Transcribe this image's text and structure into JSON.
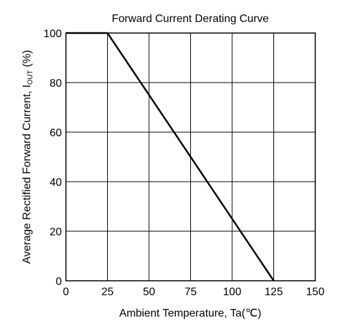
{
  "chart_data": {
    "type": "line",
    "title": "Forward Current Derating Curve",
    "xlabel": "Ambient Temperature, Ta(℃)",
    "ylabel": {
      "prefix": "Average Rectified Forward Current,  I",
      "subscript": "OUT",
      "suffix": "  (%)"
    },
    "xlim": [
      0,
      150
    ],
    "ylim": [
      0,
      100
    ],
    "xticks": [
      0,
      25,
      50,
      75,
      100,
      125,
      150
    ],
    "yticks": [
      0,
      20,
      40,
      60,
      80,
      100
    ],
    "grid": true,
    "series": [
      {
        "x": [
          0,
          25,
          125
        ],
        "y": [
          100,
          100,
          0
        ]
      }
    ],
    "colors": {
      "line": "#000000",
      "grid": "#000000",
      "frame": "#000000",
      "background": "#ffffff"
    }
  }
}
